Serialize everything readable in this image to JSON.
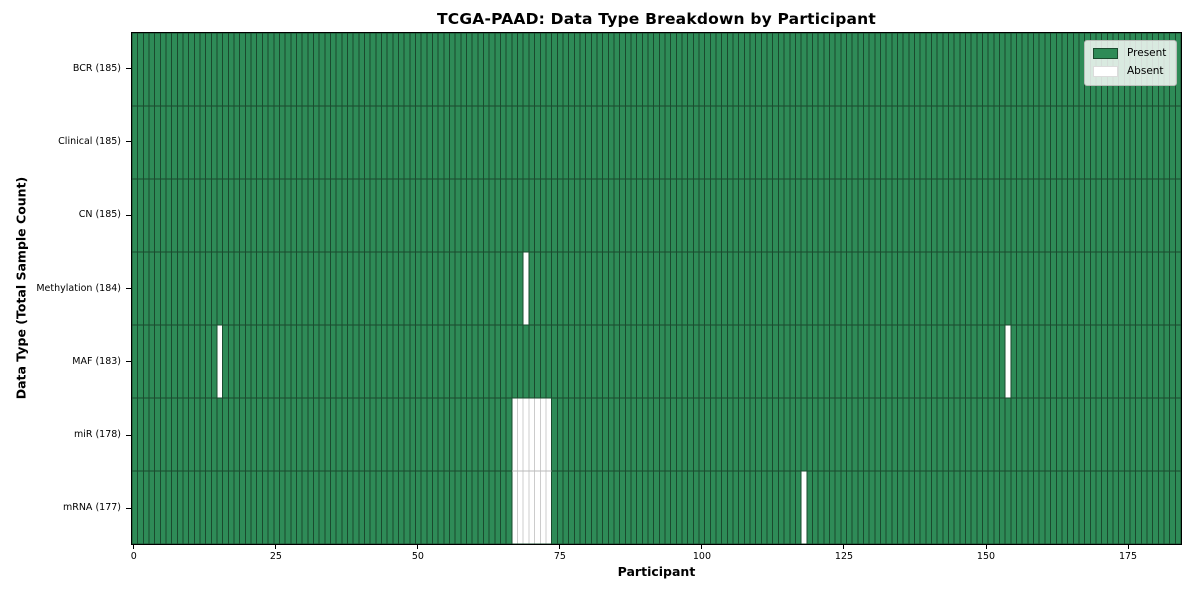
{
  "chart_data": {
    "type": "heatmap",
    "title": "TCGA-PAAD: Data Type Breakdown by Participant",
    "xlabel": "Participant",
    "ylabel": "Data Type (Total Sample Count)",
    "n_participants": 185,
    "xlim": [
      -0.5,
      184.5
    ],
    "x_ticks": [
      0,
      25,
      50,
      75,
      100,
      125,
      150,
      175
    ],
    "grid": false,
    "legend_position": "upper-right",
    "rows": [
      {
        "label": "BCR (185)",
        "total_samples": 185,
        "absent_participants": []
      },
      {
        "label": "Clinical (185)",
        "total_samples": 185,
        "absent_participants": []
      },
      {
        "label": "CN (185)",
        "total_samples": 185,
        "absent_participants": []
      },
      {
        "label": "Methylation (184)",
        "total_samples": 184,
        "absent_participants": [
          69
        ]
      },
      {
        "label": "MAF (183)",
        "total_samples": 183,
        "absent_participants": [
          15,
          154
        ]
      },
      {
        "label": "miR (178)",
        "total_samples": 178,
        "absent_participants": [
          67,
          68,
          69,
          70,
          71,
          72,
          73
        ]
      },
      {
        "label": "mRNA (177)",
        "total_samples": 177,
        "absent_participants": [
          67,
          68,
          69,
          70,
          71,
          72,
          73,
          118
        ]
      }
    ],
    "legend_items": [
      {
        "label": "Present",
        "color": "#2e8b57",
        "edge": "#1a4a2e"
      },
      {
        "label": "Absent",
        "color": "#ffffff",
        "edge": "#dcdcdc"
      }
    ],
    "colors": {
      "present": "#2e8b57",
      "absent": "#ffffff",
      "cell_edge_present": "#1a4a2e",
      "cell_edge_absent": "#cccccc",
      "row_divider_absent": "#bbbbbb",
      "spine": "#000000"
    }
  }
}
